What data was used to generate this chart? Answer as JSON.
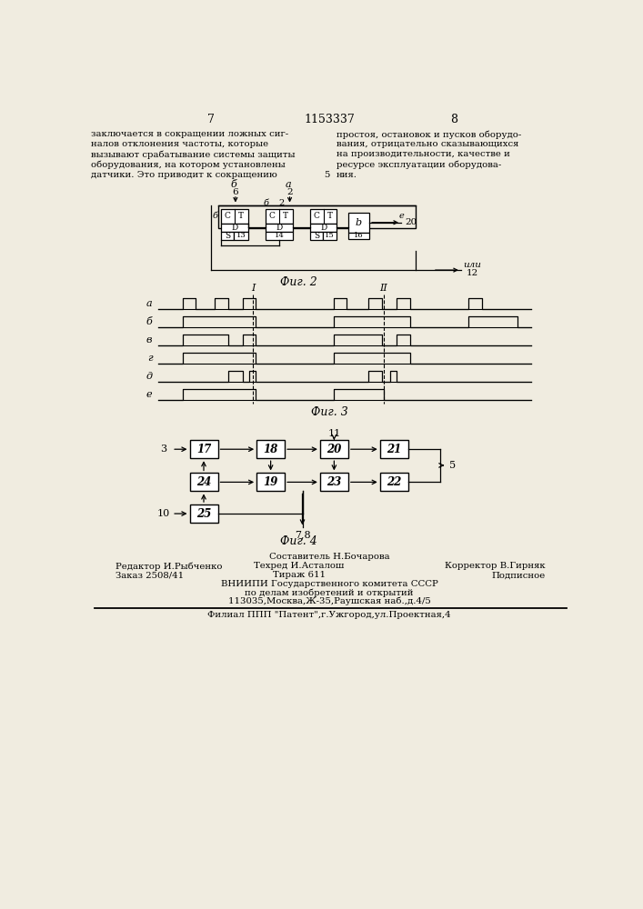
{
  "page_num_left": "7",
  "page_num_center": "1153337",
  "page_num_right": "8",
  "left_text_lines": [
    "заключается в сокращении ложных сиг-",
    "налов отклонения частоты, которые",
    "вызывают срабатывание системы защиты",
    "оборудования, на котором установлены",
    "датчики. Это приводит к сокращению"
  ],
  "line_number": "5",
  "right_text_lines": [
    "простоя, остановок и пусков оборудо-",
    "вания, отрицательно сказывающихся",
    "на производительности, качестве и",
    "ресурсе эксплуатации оборудова-",
    "ния."
  ],
  "fig2_label": "Фиг. 2",
  "fig3_label": "Фиг. 3",
  "fig4_label": "Фиг. 4",
  "footer_editor": "Редактор И.Рыбченко",
  "footer_sostavitel": "Составитель Н.Бочарова",
  "footer_tech": "Техред И.Асталош",
  "footer_corrector": "Корректор В.Гирняк",
  "footer_order": "Заказ 2508/41",
  "footer_tirazh": "Тираж 611",
  "footer_podpisnoe": "Подписное",
  "footer_vniiipi": "ВНИИПИ Государственного комитета СССР",
  "footer_po_delam": "по делам изобретений и открытий",
  "footer_address": "113035,Москва,Ж-35,Раушская наб.,д.4/5",
  "footer_filial": "Филиал ППП \"Патент\",г.Ужгород,ул.Проектная,4",
  "bg_color": "#f0ece0"
}
